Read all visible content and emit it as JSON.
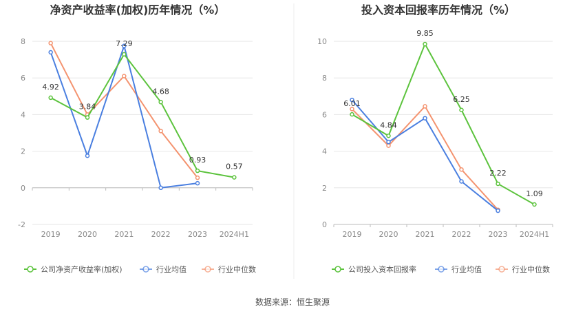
{
  "chart_data": [
    {
      "type": "line",
      "title": "净资产收益率(加权)历年情况（%）",
      "categories": [
        "2019",
        "2020",
        "2021",
        "2022",
        "2023",
        "2024H1"
      ],
      "ylim": [
        -2,
        8
      ],
      "yticks": [
        "-2",
        "0",
        "2",
        "4",
        "6",
        "8"
      ],
      "grid": true,
      "legend_position": "bottom",
      "series": [
        {
          "name": "公司净资产收益率(加权)",
          "color": "#5cc33d",
          "values": [
            4.92,
            3.84,
            7.29,
            4.68,
            0.93,
            0.57
          ],
          "labels": [
            "4.92",
            "3.84",
            "7.29",
            "4.68",
            "0.93",
            "0.57"
          ]
        },
        {
          "name": "行业均值",
          "color": "#4a7fe0",
          "values": [
            7.4,
            1.75,
            7.75,
            0.0,
            0.25,
            null
          ]
        },
        {
          "name": "行业中位数",
          "color": "#f4936f",
          "values": [
            7.9,
            4.0,
            6.1,
            3.1,
            0.55,
            null
          ]
        }
      ]
    },
    {
      "type": "line",
      "title": "投入资本回报率历年情况（%）",
      "categories": [
        "2019",
        "2020",
        "2021",
        "2022",
        "2023",
        "2024H1"
      ],
      "ylim": [
        0,
        10
      ],
      "yticks": [
        "0",
        "2",
        "4",
        "6",
        "8",
        "10"
      ],
      "grid": true,
      "legend_position": "bottom",
      "series": [
        {
          "name": "公司投入资本回报率",
          "color": "#5cc33d",
          "values": [
            6.01,
            4.84,
            9.85,
            6.25,
            2.22,
            1.09
          ],
          "labels": [
            "6.01",
            "4.84",
            "9.85",
            "6.25",
            "2.22",
            "1.09"
          ]
        },
        {
          "name": "行业均值",
          "color": "#4a7fe0",
          "values": [
            6.8,
            4.5,
            5.8,
            2.35,
            0.75,
            null
          ]
        },
        {
          "name": "行业中位数",
          "color": "#f4936f",
          "values": [
            6.3,
            4.3,
            6.45,
            3.0,
            0.8,
            null
          ]
        }
      ]
    }
  ],
  "source": "数据来源：恒生聚源"
}
